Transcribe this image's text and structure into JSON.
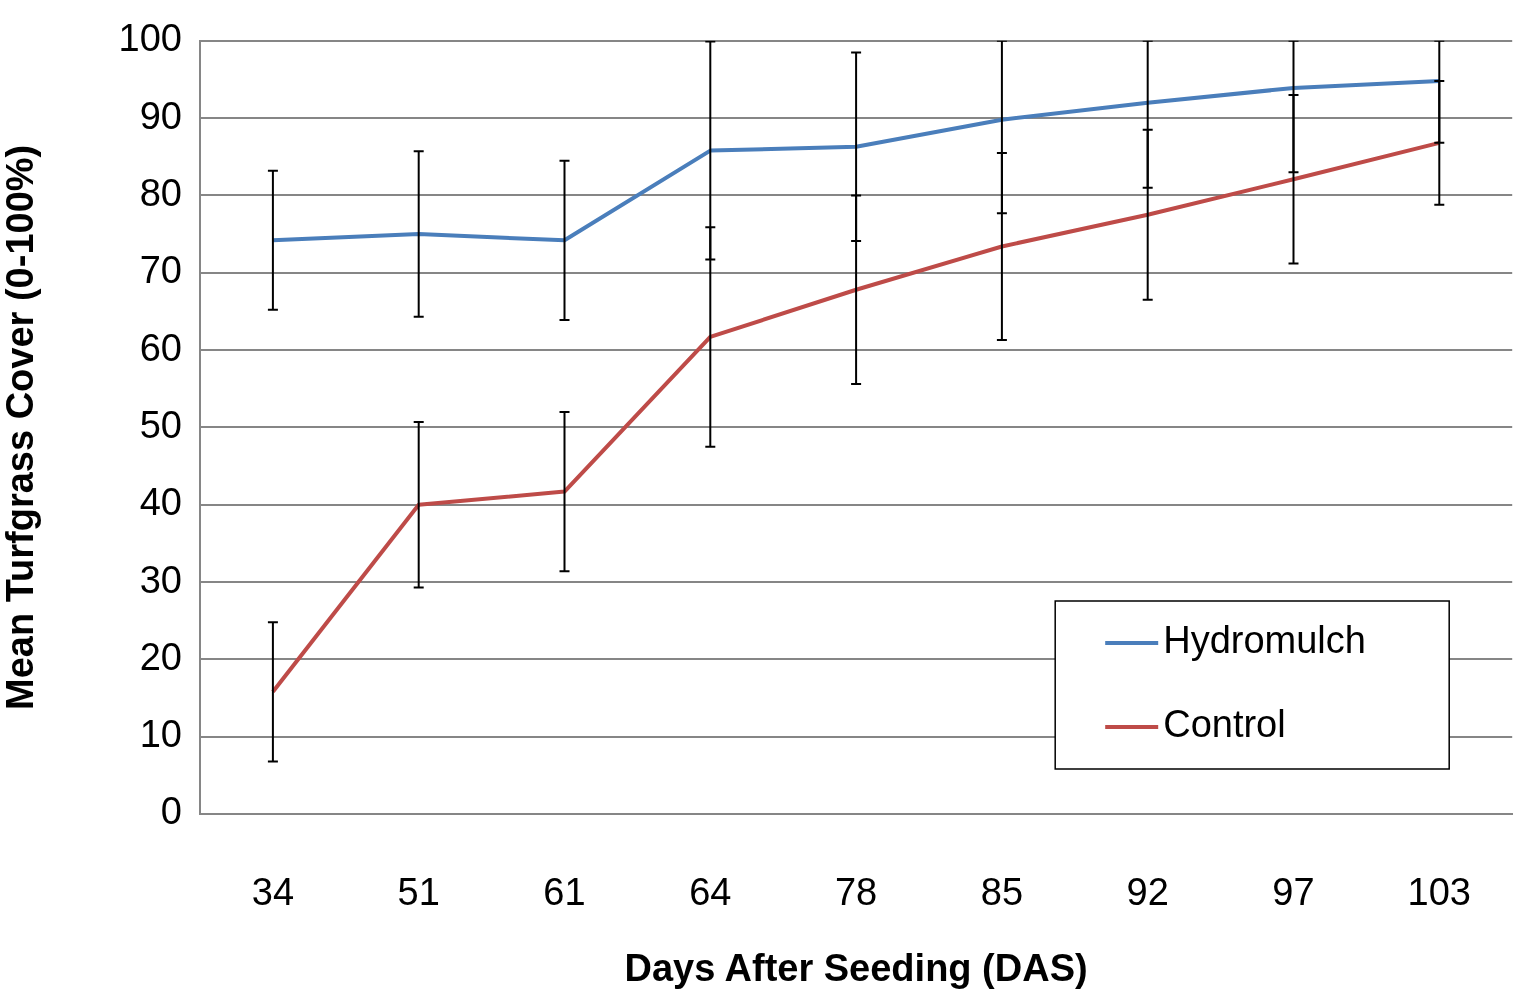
{
  "chart_data": {
    "type": "line",
    "xlabel": "Days After Seeding (DAS)",
    "ylabel": "Mean Turfgrass Cover (0-100%)",
    "categories": [
      "34",
      "51",
      "61",
      "64",
      "78",
      "85",
      "92",
      "97",
      "103"
    ],
    "ylim": [
      0,
      100
    ],
    "yticks": [
      0,
      10,
      20,
      30,
      40,
      50,
      60,
      70,
      80,
      90,
      100
    ],
    "grid": "y",
    "legend": "bottom right",
    "marker": "none",
    "line_style": "solid",
    "series": [
      {
        "name": "Hydromulch",
        "color": "#4a7ebb",
        "values": [
          74.2,
          75.0,
          74.2,
          85.8,
          86.3,
          89.8,
          92.0,
          93.9,
          94.8
        ],
        "errors": [
          9,
          10.7,
          10.3,
          14.1,
          12.2,
          [
            77.7,
            100
          ],
          [
            81.0,
            100
          ],
          [
            83.0,
            100
          ],
          [
            86.8,
            100
          ]
        ]
      },
      {
        "name": "Control",
        "color": "#be4b48",
        "values": [
          15.8,
          40.0,
          41.7,
          61.7,
          67.8,
          73.4,
          77.5,
          82.1,
          86.8
        ],
        "errors": [
          9,
          10.7,
          10.3,
          14.2,
          12.2,
          12.1,
          11,
          10.9,
          8
        ]
      }
    ]
  }
}
